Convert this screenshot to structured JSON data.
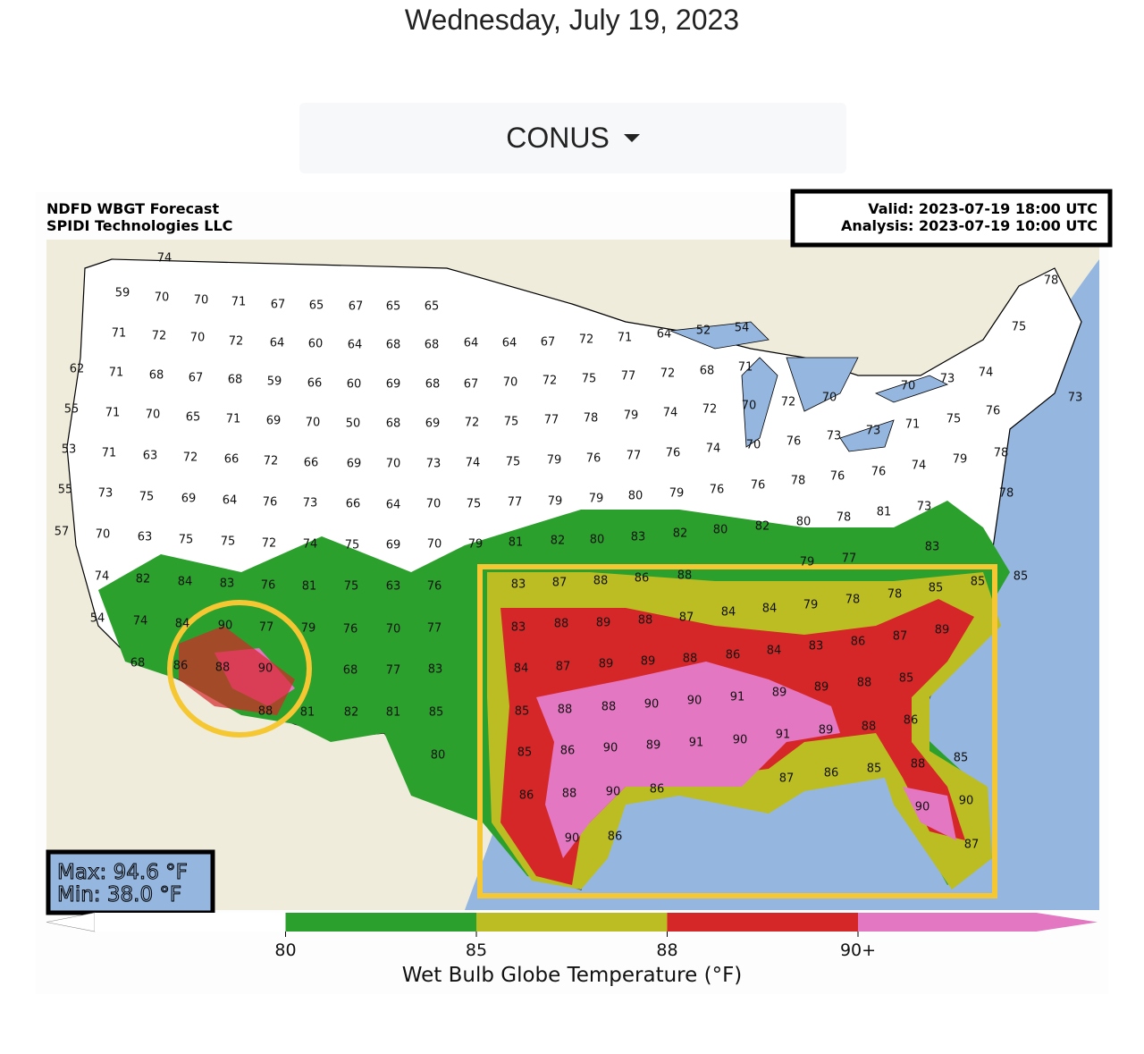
{
  "header": {
    "date": "Wednesday, July 19, 2023"
  },
  "dropdown": {
    "label": "CONUS"
  },
  "map": {
    "title": "NDFD WBGT Forecast",
    "credit": "SPIDI Technologies LLC",
    "valid": "Valid: 2023-07-19 18:00 UTC",
    "analysis": "Analysis: 2023-07-19 10:00 UTC",
    "max": "Max: 94.6 °F",
    "min": "Min: 38.0 °F",
    "labels": [
      74,
      59,
      70,
      70,
      71,
      67,
      65,
      67,
      65,
      65,
      71,
      72,
      70,
      72,
      64,
      60,
      64,
      68,
      68,
      64,
      64,
      67,
      72,
      71,
      64,
      52,
      54,
      62,
      71,
      68,
      67,
      68,
      59,
      66,
      60,
      69,
      68,
      67,
      70,
      72,
      75,
      77,
      72,
      68,
      71,
      55,
      71,
      70,
      65,
      71,
      69,
      70,
      50,
      68,
      69,
      72,
      75,
      77,
      78,
      79,
      74,
      72,
      70,
      72,
      70,
      70,
      73,
      74,
      75,
      78,
      53,
      71,
      63,
      72,
      66,
      72,
      66,
      69,
      70,
      73,
      74,
      75,
      79,
      76,
      77,
      76,
      74,
      70,
      76,
      73,
      73,
      71,
      75,
      76,
      73,
      55,
      73,
      75,
      69,
      64,
      76,
      73,
      66,
      64,
      70,
      75,
      77,
      79,
      79,
      80,
      79,
      76,
      76,
      78,
      76,
      76,
      74,
      79,
      78,
      78,
      57,
      70,
      63,
      75,
      75,
      72,
      74,
      75,
      69,
      70,
      79,
      81,
      82,
      80,
      83,
      82,
      80,
      82,
      80,
      78,
      81,
      73,
      74,
      82,
      84,
      83,
      76,
      81,
      75,
      63,
      76,
      83,
      87,
      88,
      86,
      88,
      84,
      79,
      78,
      78,
      85,
      85,
      85,
      83,
      77,
      79,
      54,
      74,
      84,
      90,
      77,
      79,
      76,
      70,
      77,
      83,
      88,
      89,
      88,
      87,
      84,
      87,
      89,
      68,
      86,
      88,
      90,
      68,
      77,
      83,
      84,
      87,
      89,
      89,
      88,
      86,
      84,
      83,
      86,
      88,
      81,
      82,
      81,
      85,
      85,
      88,
      88,
      90,
      90,
      91,
      89,
      89,
      88,
      85,
      80,
      85,
      86,
      90,
      89,
      91,
      90,
      91,
      89,
      88,
      86,
      85,
      88,
      85,
      86,
      87,
      86,
      88,
      90,
      86,
      90,
      90,
      87,
      90,
      86
    ]
  },
  "colorbar": {
    "label": "Wet Bulb Globe Temperature (°F)",
    "colors": [
      "#ffffff",
      "#2ca02c",
      "#bcbd22",
      "#d62728",
      "#e377c2"
    ],
    "ticks": [
      80,
      85,
      88,
      {
        "value": 90,
        "label": "90+"
      }
    ]
  }
}
